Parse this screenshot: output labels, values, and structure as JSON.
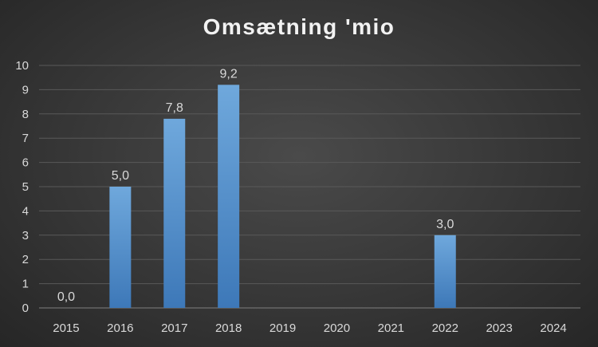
{
  "chart_data": {
    "type": "bar",
    "title": "Omsætning 'mio",
    "xlabel": "",
    "ylabel": "",
    "categories": [
      "2015",
      "2016",
      "2017",
      "2018",
      "2019",
      "2020",
      "2021",
      "2022",
      "2023",
      "2024"
    ],
    "values": [
      0.0,
      5.0,
      7.8,
      9.2,
      null,
      null,
      null,
      3.0,
      null,
      null
    ],
    "data_labels": [
      "0,0",
      "5,0",
      "7,8",
      "9,2",
      "",
      "",
      "",
      "3,0",
      "",
      ""
    ],
    "ylim": [
      0,
      10
    ],
    "yticks": [
      "0",
      "1",
      "2",
      "3",
      "4",
      "5",
      "6",
      "7",
      "8",
      "9",
      "10"
    ],
    "grid": true,
    "legend": "none",
    "colors": {
      "bar_top": "#6fa8dc",
      "bar_bottom": "#3d78b8",
      "gridline": "#595959",
      "text": "#d9d9d9"
    }
  }
}
